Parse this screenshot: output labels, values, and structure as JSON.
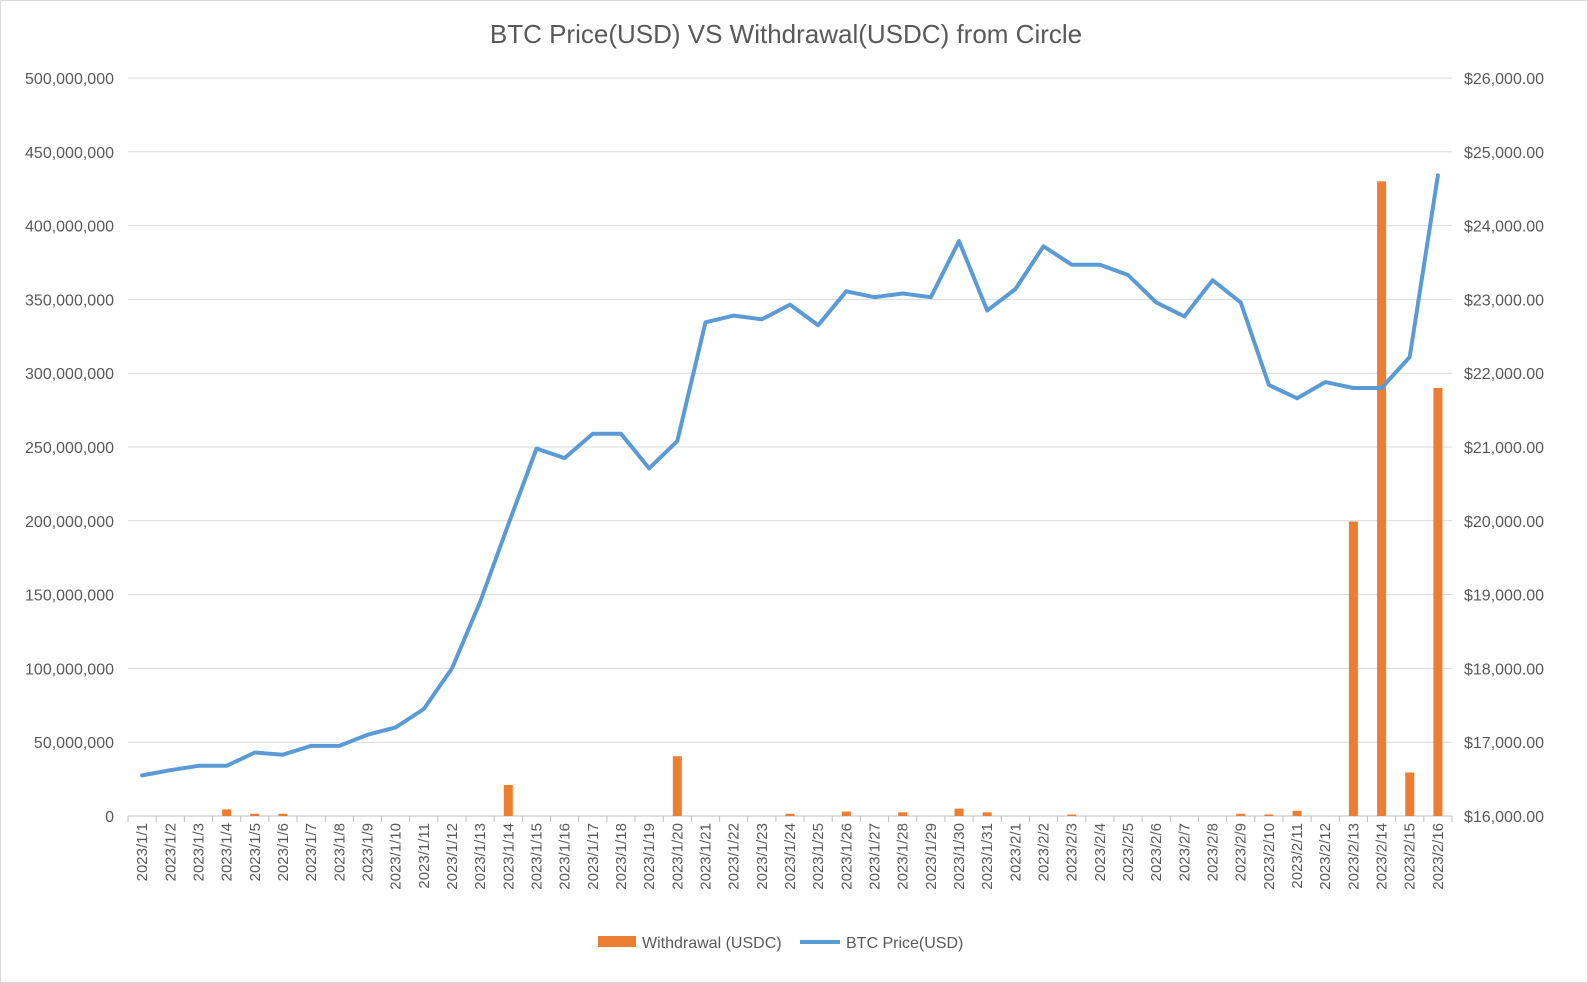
{
  "chart_data": {
    "type": "bar",
    "title": "BTC Price(USD) VS Withdrawal(USDC) from Circle",
    "categories": [
      "2023/1/1",
      "2023/1/2",
      "2023/1/3",
      "2023/1/4",
      "2023/1/5",
      "2023/1/6",
      "2023/1/7",
      "2023/1/8",
      "2023/1/9",
      "2023/1/10",
      "2023/1/11",
      "2023/1/12",
      "2023/1/13",
      "2023/1/14",
      "2023/1/15",
      "2023/1/16",
      "2023/1/17",
      "2023/1/18",
      "2023/1/19",
      "2023/1/20",
      "2023/1/21",
      "2023/1/22",
      "2023/1/23",
      "2023/1/24",
      "2023/1/25",
      "2023/1/26",
      "2023/1/27",
      "2023/1/28",
      "2023/1/29",
      "2023/1/30",
      "2023/1/31",
      "2023/2/1",
      "2023/2/2",
      "2023/2/3",
      "2023/2/4",
      "2023/2/5",
      "2023/2/6",
      "2023/2/7",
      "2023/2/8",
      "2023/2/9",
      "2023/2/10",
      "2023/2/11",
      "2023/2/12",
      "2023/2/13",
      "2023/2/14",
      "2023/2/15",
      "2023/2/16"
    ],
    "left_axis": {
      "ylim": [
        0,
        500000000
      ],
      "ticks": [
        "0",
        "50,000,000",
        "100,000,000",
        "150,000,000",
        "200,000,000",
        "250,000,000",
        "300,000,000",
        "350,000,000",
        "400,000,000",
        "450,000,000",
        "500,000,000"
      ]
    },
    "right_axis": {
      "ylim": [
        16000,
        26000
      ],
      "ticks": [
        "$16,000.00",
        "$17,000.00",
        "$18,000.00",
        "$19,000.00",
        "$20,000.00",
        "$21,000.00",
        "$22,000.00",
        "$23,000.00",
        "$24,000.00",
        "$25,000.00",
        "$26,000.00"
      ]
    },
    "grid": true,
    "legend_position": "bottom",
    "series": [
      {
        "name": "Withdrawal (USDC)",
        "type": "bar",
        "axis": "left",
        "color": "#ed7d31",
        "values": [
          0,
          0,
          0,
          4500000,
          1500000,
          1500000,
          0,
          0,
          0,
          0,
          0,
          0,
          0,
          21000000,
          0,
          0,
          0,
          0,
          0,
          40500000,
          0,
          0,
          0,
          1500000,
          0,
          3000000,
          0,
          2500000,
          0,
          5000000,
          2500000,
          0,
          0,
          1000000,
          0,
          0,
          0,
          0,
          0,
          1500000,
          1000000,
          3500000,
          0,
          199500000,
          430000000,
          29500000,
          290000000
        ]
      },
      {
        "name": "BTC Price(USD)",
        "type": "line",
        "axis": "right",
        "color": "#5b9bd5",
        "values": [
          16550,
          16620,
          16680,
          16680,
          16860,
          16830,
          16950,
          16950,
          17100,
          17200,
          17450,
          18000,
          18900,
          19950,
          20980,
          20850,
          21180,
          21180,
          20710,
          21080,
          22690,
          22780,
          22730,
          22930,
          22650,
          23110,
          23030,
          23080,
          23030,
          23790,
          22850,
          23140,
          23720,
          23470,
          23470,
          23330,
          22960,
          22770,
          23260,
          22960,
          21840,
          21660,
          21880,
          21800,
          21800,
          22220,
          24680
        ]
      }
    ]
  }
}
